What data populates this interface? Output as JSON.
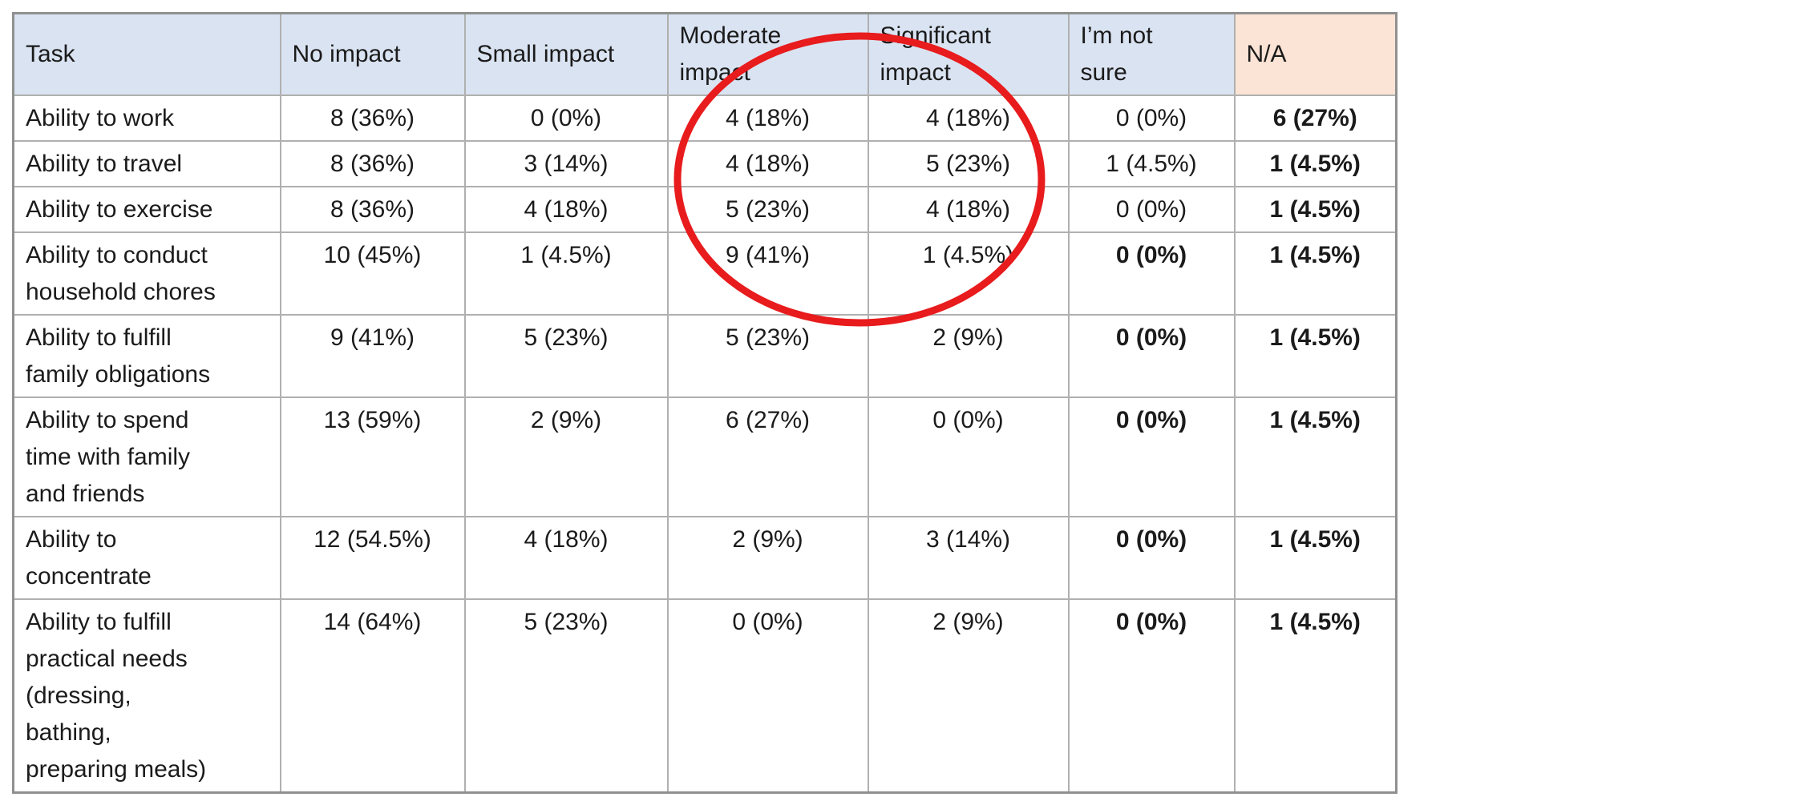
{
  "colors": {
    "header_bg": "#dae3f1",
    "na_header_bg": "#fbe4d5",
    "grid_border": "#b0b0b0",
    "outer_border": "#909090",
    "text": "#1b1b1b",
    "annotation_red": "#e81b1d"
  },
  "table": {
    "columns": [
      {
        "label": "Task",
        "highlight": false
      },
      {
        "label": "No impact",
        "highlight": false
      },
      {
        "label": "Small impact",
        "highlight": false
      },
      {
        "label": "Moderate\nimpact",
        "highlight": false
      },
      {
        "label": "Significant\nimpact",
        "highlight": false
      },
      {
        "label": "I’m not\nsure",
        "highlight": false
      },
      {
        "label": "N/A",
        "highlight": true
      }
    ],
    "rows": [
      {
        "task": "Ability to work",
        "cells": [
          {
            "text": "8 (36%)",
            "bold": false
          },
          {
            "text": "0 (0%)",
            "bold": false
          },
          {
            "text": "4 (18%)",
            "bold": false
          },
          {
            "text": "4 (18%)",
            "bold": false
          },
          {
            "text": "0 (0%)",
            "bold": false
          },
          {
            "text": "6 (27%)",
            "bold": true
          }
        ]
      },
      {
        "task": "Ability to travel",
        "cells": [
          {
            "text": "8 (36%)",
            "bold": false
          },
          {
            "text": "3 (14%)",
            "bold": false
          },
          {
            "text": "4 (18%)",
            "bold": false
          },
          {
            "text": "5 (23%)",
            "bold": false
          },
          {
            "text": "1 (4.5%)",
            "bold": false
          },
          {
            "text": "1 (4.5%)",
            "bold": true
          }
        ]
      },
      {
        "task": "Ability to exercise",
        "cells": [
          {
            "text": "8 (36%)",
            "bold": false
          },
          {
            "text": "4 (18%)",
            "bold": false
          },
          {
            "text": "5 (23%)",
            "bold": false
          },
          {
            "text": "4 (18%)",
            "bold": false
          },
          {
            "text": "0 (0%)",
            "bold": false
          },
          {
            "text": "1 (4.5%)",
            "bold": true
          }
        ]
      },
      {
        "task": "Ability to conduct\nhousehold chores",
        "cells": [
          {
            "text": "10 (45%)",
            "bold": false
          },
          {
            "text": "1 (4.5%)",
            "bold": false
          },
          {
            "text": "9 (41%)",
            "bold": false
          },
          {
            "text": "1 (4.5%)",
            "bold": false
          },
          {
            "text": "0 (0%)",
            "bold": true
          },
          {
            "text": "1 (4.5%)",
            "bold": true
          }
        ]
      },
      {
        "task": "Ability to fulfill\nfamily obligations",
        "cells": [
          {
            "text": "9 (41%)",
            "bold": false
          },
          {
            "text": "5 (23%)",
            "bold": false
          },
          {
            "text": "5 (23%)",
            "bold": false
          },
          {
            "text": "2 (9%)",
            "bold": false
          },
          {
            "text": "0 (0%)",
            "bold": true
          },
          {
            "text": "1 (4.5%)",
            "bold": true
          }
        ]
      },
      {
        "task": "Ability to spend\ntime with family\nand friends",
        "cells": [
          {
            "text": "13 (59%)",
            "bold": false
          },
          {
            "text": "2 (9%)",
            "bold": false
          },
          {
            "text": "6 (27%)",
            "bold": false
          },
          {
            "text": "0 (0%)",
            "bold": false
          },
          {
            "text": "0 (0%)",
            "bold": true
          },
          {
            "text": "1 (4.5%)",
            "bold": true
          }
        ]
      },
      {
        "task": "Ability to\nconcentrate",
        "cells": [
          {
            "text": "12 (54.5%)",
            "bold": false
          },
          {
            "text": "4 (18%)",
            "bold": false
          },
          {
            "text": "2 (9%)",
            "bold": false
          },
          {
            "text": "3 (14%)",
            "bold": false
          },
          {
            "text": "0 (0%)",
            "bold": true
          },
          {
            "text": "1 (4.5%)",
            "bold": true
          }
        ]
      },
      {
        "task": "Ability to fulfill\npractical needs\n(dressing,\nbathing,\npreparing meals)",
        "cells": [
          {
            "text": "14 (64%)",
            "bold": false
          },
          {
            "text": "5 (23%)",
            "bold": false
          },
          {
            "text": "0 (0%)",
            "bold": false
          },
          {
            "text": "2 (9%)",
            "bold": false
          },
          {
            "text": "0 (0%)",
            "bold": true
          },
          {
            "text": "1 (4.5%)",
            "bold": true
          }
        ]
      }
    ]
  },
  "annotation": {
    "shape": "ellipse",
    "color": "#e81b1d"
  }
}
